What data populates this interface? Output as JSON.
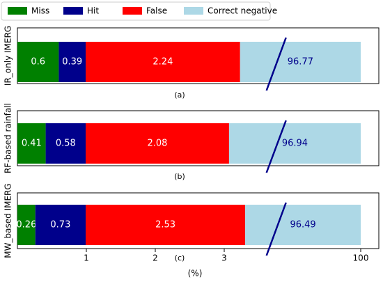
{
  "chart_data": {
    "type": "bar",
    "orientation": "horizontal",
    "stacked": true,
    "xlabel": "(%)",
    "x_ticks": [
      "1",
      "2",
      "3",
      "100"
    ],
    "axis_break": true,
    "grid": false,
    "legend": {
      "placement": "top",
      "entries": [
        {
          "name": "Miss",
          "color": "#008000"
        },
        {
          "name": "Hit",
          "color": "#00008b"
        },
        {
          "name": "False",
          "color": "#ff0000"
        },
        {
          "name": "Correct negative",
          "color": "#add8e6"
        }
      ]
    },
    "panels": [
      {
        "id": "a",
        "caption": "(a)",
        "ylabel": "IR_only IMERG",
        "values": {
          "Miss": 0.6,
          "Hit": 0.39,
          "False": 2.24,
          "Correct negative": 96.77
        },
        "labels": [
          "0.6",
          "0.39",
          "2.24",
          "96.77"
        ]
      },
      {
        "id": "b",
        "caption": "(b)",
        "ylabel": "RF-based rainfall",
        "values": {
          "Miss": 0.41,
          "Hit": 0.58,
          "False": 2.08,
          "Correct negative": 96.94
        },
        "labels": [
          "0.41",
          "0.58",
          "2.08",
          "96.94"
        ]
      },
      {
        "id": "c",
        "caption": "(c)",
        "ylabel": "MW_based IMERG",
        "values": {
          "Miss": 0.26,
          "Hit": 0.73,
          "False": 2.53,
          "Correct negative": 96.49
        },
        "labels": [
          "0.26",
          "0.73",
          "2.53",
          "96.49"
        ]
      }
    ]
  }
}
